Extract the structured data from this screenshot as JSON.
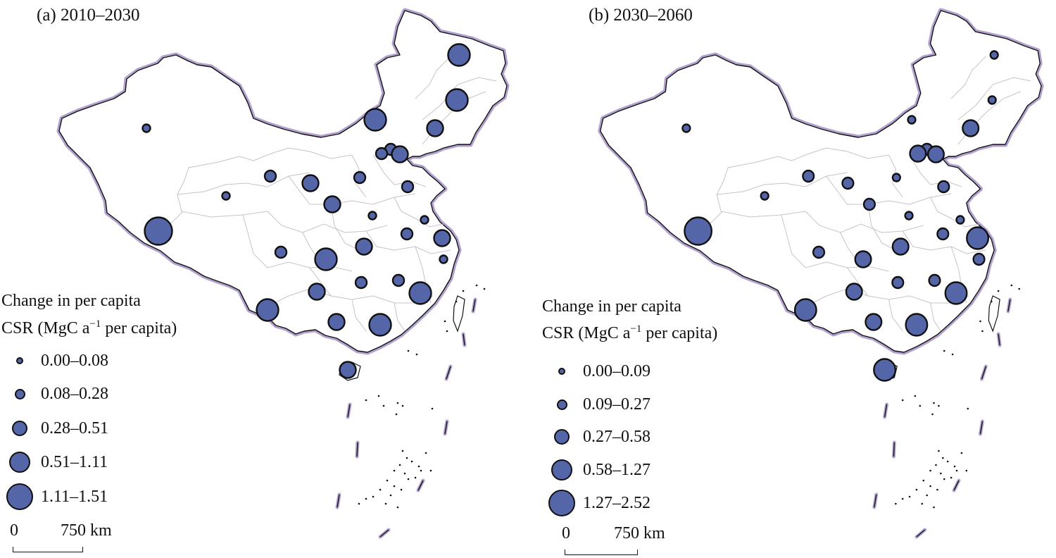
{
  "panels": [
    {
      "title": "(a) 2010–2030",
      "legend": {
        "title_line1": "Change in per capita",
        "title_line2_prefix": "CSR (MgC a",
        "title_line2_sup": "−1",
        "title_line2_suffix": " per capita)",
        "classes": [
          "0.00–0.08",
          "0.08–0.28",
          "0.28–0.51",
          "0.51–1.11",
          "1.11–1.51"
        ]
      },
      "scale": {
        "zero": "0",
        "distance": "750 km"
      },
      "province_symbol_class": [
        4,
        3,
        3,
        3,
        2,
        1,
        2,
        0,
        0,
        1,
        2,
        1,
        1,
        0,
        0,
        1,
        2,
        3,
        1,
        2,
        1,
        1,
        3,
        3,
        2,
        3,
        2,
        2,
        2,
        1,
        0
      ]
    },
    {
      "title": "(b) 2030–2060",
      "legend": {
        "title_line1": "Change in per capita",
        "title_line2_prefix": "CSR (MgC a",
        "title_line2_sup": "−1",
        "title_line2_suffix": " per capita)",
        "classes": [
          "0.00–0.09",
          "0.09–0.27",
          "0.27–0.58",
          "0.58–1.27",
          "1.27–2.52"
        ]
      },
      "scale": {
        "zero": "0",
        "distance": "750 km"
      },
      "province_symbol_class": [
        4,
        0,
        0,
        0,
        2,
        1,
        1,
        0,
        0,
        1,
        1,
        0,
        1,
        0,
        0,
        1,
        2,
        2,
        1,
        2,
        1,
        1,
        3,
        3,
        2,
        3,
        3,
        3,
        2,
        2,
        1
      ]
    }
  ],
  "colors": {
    "symbol_fill": "#5566a8",
    "symbol_stroke": "#111111",
    "border_halo": "#b3a2cf",
    "province_lines": "#c9c1cb"
  }
}
